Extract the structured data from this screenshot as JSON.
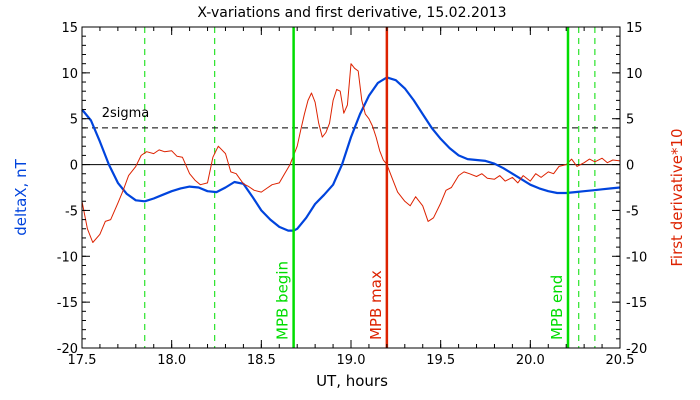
{
  "chart_data": {
    "type": "line",
    "title": "X-variations and first derivative, 15.02.2013",
    "xlabel": "UT, hours",
    "ylabel_left": "deltaX, nT",
    "ylabel_right": "First derivative*10",
    "xlim": [
      17.5,
      20.5
    ],
    "ylim": [
      -20,
      15
    ],
    "xticks": [
      "17.5",
      "18.0",
      "18.5",
      "19.0",
      "19.5",
      "20.0",
      "20.5"
    ],
    "yticks": [
      "15",
      "10",
      "5",
      "0",
      "-5",
      "-10",
      "-15",
      "-20"
    ],
    "colors": {
      "deltaX": "#0044dd",
      "derivative": "#dd2200",
      "mpb": "#00dd00",
      "mpb_max": "#dd2200",
      "axes": "#000000"
    },
    "series": [
      {
        "name": "deltaX, nT",
        "axis": "left",
        "x": [
          17.5,
          17.55,
          17.6,
          17.65,
          17.7,
          17.75,
          17.8,
          17.85,
          17.9,
          17.95,
          18.0,
          18.05,
          18.1,
          18.15,
          18.2,
          18.25,
          18.3,
          18.35,
          18.4,
          18.45,
          18.5,
          18.55,
          18.6,
          18.65,
          18.68,
          18.7,
          18.75,
          18.8,
          18.85,
          18.9,
          18.95,
          19.0,
          19.05,
          19.1,
          19.15,
          19.2,
          19.25,
          19.3,
          19.35,
          19.4,
          19.45,
          19.5,
          19.55,
          19.6,
          19.65,
          19.7,
          19.75,
          19.8,
          19.85,
          19.9,
          19.95,
          20.0,
          20.05,
          20.1,
          20.15,
          20.2,
          20.25,
          20.3,
          20.35,
          20.4,
          20.45,
          20.5
        ],
        "y": [
          6.0,
          4.8,
          2.5,
          0.0,
          -2.0,
          -3.2,
          -3.9,
          -4.0,
          -3.7,
          -3.3,
          -2.9,
          -2.6,
          -2.4,
          -2.5,
          -2.9,
          -3.0,
          -2.5,
          -1.9,
          -2.1,
          -3.5,
          -5.0,
          -6.0,
          -6.8,
          -7.2,
          -7.2,
          -7.0,
          -5.8,
          -4.3,
          -3.3,
          -2.2,
          0.0,
          3.0,
          5.5,
          7.5,
          8.9,
          9.5,
          9.2,
          8.3,
          7.0,
          5.5,
          4.0,
          2.8,
          1.8,
          1.0,
          0.6,
          0.5,
          0.4,
          0.1,
          -0.4,
          -1.0,
          -1.6,
          -2.2,
          -2.6,
          -2.9,
          -3.1,
          -3.1,
          -3.0,
          -2.9,
          -2.8,
          -2.7,
          -2.6,
          -2.5
        ]
      },
      {
        "name": "First derivative*10",
        "axis": "right",
        "x": [
          17.5,
          17.53,
          17.56,
          17.6,
          17.63,
          17.66,
          17.7,
          17.73,
          17.76,
          17.8,
          17.83,
          17.86,
          17.9,
          17.93,
          17.96,
          18.0,
          18.03,
          18.06,
          18.1,
          18.13,
          18.16,
          18.2,
          18.23,
          18.26,
          18.3,
          18.33,
          18.36,
          18.4,
          18.43,
          18.46,
          18.5,
          18.53,
          18.56,
          18.6,
          18.63,
          18.66,
          18.7,
          18.72,
          18.74,
          18.76,
          18.78,
          18.8,
          18.82,
          18.84,
          18.86,
          18.88,
          18.9,
          18.92,
          18.94,
          18.96,
          18.98,
          19.0,
          19.02,
          19.04,
          19.06,
          19.08,
          19.1,
          19.12,
          19.14,
          19.16,
          19.18,
          19.2,
          19.23,
          19.26,
          19.3,
          19.33,
          19.36,
          19.4,
          19.43,
          19.46,
          19.5,
          19.53,
          19.56,
          19.6,
          19.63,
          19.66,
          19.7,
          19.73,
          19.76,
          19.8,
          19.83,
          19.86,
          19.9,
          19.93,
          19.96,
          20.0,
          20.03,
          20.06,
          20.1,
          20.13,
          20.16,
          20.2,
          20.23,
          20.26,
          20.3,
          20.33,
          20.36,
          20.4,
          20.43,
          20.46,
          20.5
        ],
        "y": [
          -4.0,
          -7.0,
          -8.5,
          -7.6,
          -6.2,
          -6.0,
          -4.2,
          -2.8,
          -1.2,
          -0.2,
          1.0,
          1.4,
          1.2,
          1.6,
          1.4,
          1.5,
          0.9,
          0.8,
          -1.0,
          -1.7,
          -2.2,
          -2.0,
          0.8,
          2.0,
          1.2,
          -0.8,
          -1.0,
          -2.1,
          -2.4,
          -2.8,
          -3.0,
          -2.6,
          -2.2,
          -2.0,
          -1.0,
          0.0,
          2.0,
          3.8,
          5.5,
          7.0,
          7.8,
          6.8,
          4.5,
          3.0,
          3.5,
          4.5,
          7.0,
          8.2,
          8.0,
          5.6,
          6.5,
          11.0,
          10.5,
          10.2,
          7.0,
          5.5,
          5.0,
          4.2,
          3.0,
          1.5,
          0.5,
          0.0,
          -1.5,
          -3.0,
          -4.0,
          -4.5,
          -3.5,
          -4.5,
          -6.2,
          -5.8,
          -4.2,
          -2.8,
          -2.5,
          -1.2,
          -0.8,
          -1.0,
          -1.3,
          -1.0,
          -1.5,
          -1.6,
          -1.2,
          -1.8,
          -1.4,
          -2.0,
          -1.2,
          -1.8,
          -1.0,
          -1.4,
          -0.8,
          -1.0,
          -0.2,
          0.0,
          0.6,
          -0.2,
          0.2,
          0.6,
          0.3,
          0.7,
          0.2,
          0.5,
          0.4
        ]
      }
    ],
    "threshold": {
      "label": "2sigma",
      "y": 4.0,
      "style": "dashed"
    },
    "zero_line": {
      "y": 0
    },
    "dashed_verticals": [
      17.85,
      18.24,
      20.27,
      20.36
    ],
    "markers": [
      {
        "x": 18.68,
        "label": "MPB begin",
        "kind": "mpb"
      },
      {
        "x": 19.2,
        "label": "MPB max",
        "kind": "mpb_max"
      },
      {
        "x": 20.21,
        "label": "MPB end",
        "kind": "mpb"
      }
    ],
    "grid": false,
    "legend": "none"
  }
}
